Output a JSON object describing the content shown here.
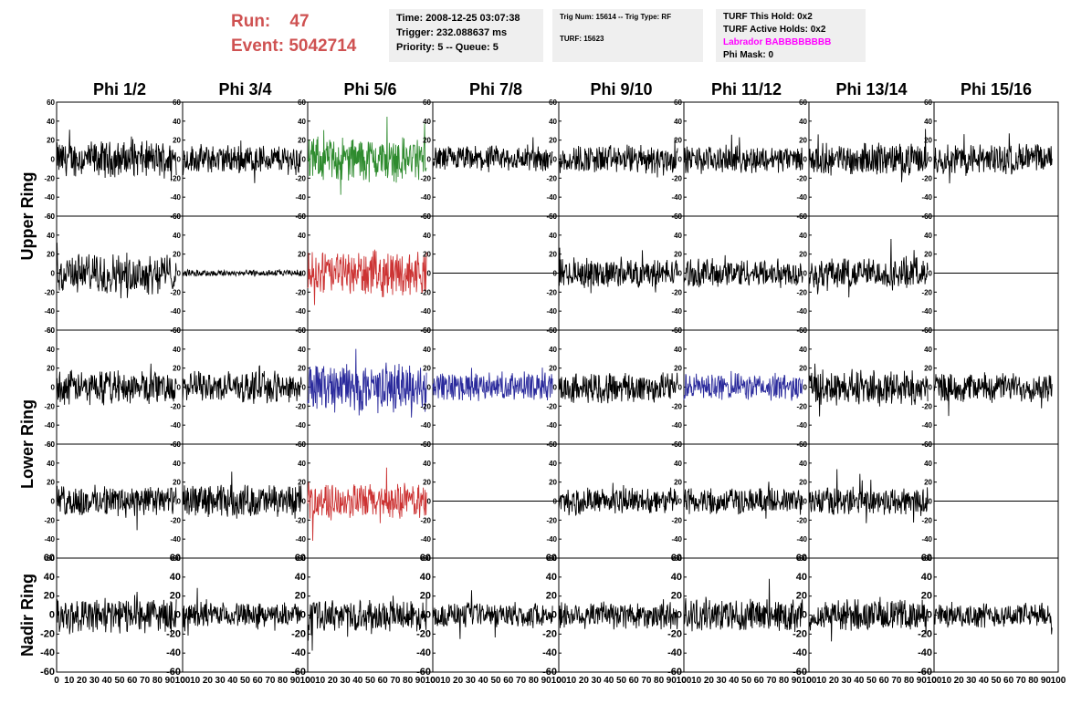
{
  "run": {
    "run_label": "Run:",
    "run_value": "47",
    "event_label": "Event:",
    "event_value": "5042714"
  },
  "info": {
    "time": "Time: 2008-12-25 03:07:38",
    "trigger": "Trigger: 232.088637 ms",
    "priority": "Priority: 5 -- Queue: 5",
    "trig_num": "Trig Num: 15614 -- Trig Type: RF",
    "turf": "TURF: 15623",
    "turf_hold": "TURF This Hold: 0x2",
    "turf_active": "TURF Active Holds: 0x2",
    "labrador": "Labrador BABBBBBBBB",
    "phi_mask": "Phi Mask: 0"
  },
  "chart_data": {
    "type": "line",
    "columns": [
      "Phi 1/2",
      "Phi 3/4",
      "Phi 5/6",
      "Phi 7/8",
      "Phi 9/10",
      "Phi 11/12",
      "Phi 13/14",
      "Phi 15/16"
    ],
    "rows": [
      "Upper Ring",
      "Lower Ring",
      "Nadir Ring"
    ],
    "ylim": [
      -60,
      60
    ],
    "xlim": [
      0,
      100
    ],
    "y_ticks": [
      -60,
      -40,
      -20,
      0,
      20,
      40,
      60
    ],
    "x_ticks": [
      0,
      10,
      20,
      30,
      40,
      50,
      60,
      70,
      80,
      90,
      100
    ],
    "colors": {
      "default": "#000000",
      "green": "#2e8b2e",
      "red": "#cc3333",
      "blue": "#2a2a9c"
    },
    "panels": [
      {
        "row": 0,
        "col": 0,
        "color": "default",
        "amp": 16,
        "flat": false
      },
      {
        "row": 0,
        "col": 1,
        "color": "default",
        "amp": 13,
        "flat": false
      },
      {
        "row": 0,
        "col": 2,
        "color": "green",
        "amp": 20,
        "flat": false
      },
      {
        "row": 0,
        "col": 3,
        "color": "default",
        "amp": 12,
        "flat": false
      },
      {
        "row": 0,
        "col": 4,
        "color": "default",
        "amp": 13,
        "flat": false
      },
      {
        "row": 0,
        "col": 5,
        "color": "default",
        "amp": 12,
        "flat": false
      },
      {
        "row": 0,
        "col": 6,
        "color": "default",
        "amp": 14,
        "flat": false
      },
      {
        "row": 0,
        "col": 7,
        "color": "default",
        "amp": 14,
        "flat": false
      },
      {
        "row": 1,
        "col": 0,
        "color": "default",
        "amp": 18,
        "flat": false
      },
      {
        "row": 1,
        "col": 1,
        "color": "default",
        "amp": 3,
        "flat": false
      },
      {
        "row": 1,
        "col": 2,
        "color": "red",
        "amp": 20,
        "flat": false
      },
      {
        "row": 1,
        "col": 3,
        "color": "default",
        "amp": 0,
        "flat": true
      },
      {
        "row": 1,
        "col": 4,
        "color": "default",
        "amp": 13,
        "flat": false
      },
      {
        "row": 1,
        "col": 5,
        "color": "default",
        "amp": 13,
        "flat": false
      },
      {
        "row": 1,
        "col": 6,
        "color": "default",
        "amp": 14,
        "flat": false
      },
      {
        "row": 1,
        "col": 7,
        "color": "default",
        "amp": 0,
        "flat": true
      },
      {
        "row": 2,
        "col": 0,
        "color": "default",
        "amp": 15,
        "flat": false
      },
      {
        "row": 2,
        "col": 1,
        "color": "default",
        "amp": 14,
        "flat": false
      },
      {
        "row": 2,
        "col": 2,
        "color": "blue",
        "amp": 22,
        "flat": false
      },
      {
        "row": 2,
        "col": 3,
        "color": "blue",
        "amp": 13,
        "flat": false
      },
      {
        "row": 2,
        "col": 4,
        "color": "default",
        "amp": 14,
        "flat": false
      },
      {
        "row": 2,
        "col": 5,
        "color": "blue",
        "amp": 12,
        "flat": false
      },
      {
        "row": 2,
        "col": 6,
        "color": "default",
        "amp": 16,
        "flat": false
      },
      {
        "row": 2,
        "col": 7,
        "color": "default",
        "amp": 13,
        "flat": false
      },
      {
        "row": 3,
        "col": 0,
        "color": "default",
        "amp": 14,
        "flat": false
      },
      {
        "row": 3,
        "col": 1,
        "color": "default",
        "amp": 15,
        "flat": false
      },
      {
        "row": 3,
        "col": 2,
        "color": "red",
        "amp": 16,
        "flat": false
      },
      {
        "row": 3,
        "col": 3,
        "color": "default",
        "amp": 0,
        "flat": true
      },
      {
        "row": 3,
        "col": 4,
        "color": "default",
        "amp": 12,
        "flat": false
      },
      {
        "row": 3,
        "col": 5,
        "color": "default",
        "amp": 12,
        "flat": false
      },
      {
        "row": 3,
        "col": 6,
        "color": "default",
        "amp": 13,
        "flat": false
      },
      {
        "row": 3,
        "col": 7,
        "color": "default",
        "amp": 0,
        "flat": true
      },
      {
        "row": 4,
        "col": 0,
        "color": "default",
        "amp": 16,
        "flat": false
      },
      {
        "row": 4,
        "col": 1,
        "color": "default",
        "amp": 11,
        "flat": false
      },
      {
        "row": 4,
        "col": 2,
        "color": "default",
        "amp": 14,
        "flat": false
      },
      {
        "row": 4,
        "col": 3,
        "color": "default",
        "amp": 11,
        "flat": false
      },
      {
        "row": 4,
        "col": 4,
        "color": "default",
        "amp": 13,
        "flat": false
      },
      {
        "row": 4,
        "col": 5,
        "color": "default",
        "amp": 15,
        "flat": false
      },
      {
        "row": 4,
        "col": 6,
        "color": "default",
        "amp": 14,
        "flat": false
      },
      {
        "row": 4,
        "col": 7,
        "color": "default",
        "amp": 11,
        "flat": false
      }
    ]
  }
}
